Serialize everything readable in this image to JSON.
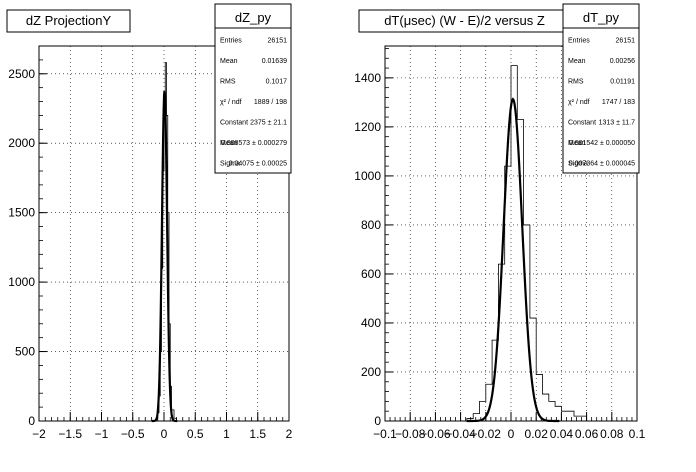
{
  "chart_data": [
    {
      "type": "histogram",
      "title": "dZ ProjectionY",
      "stats": {
        "name": "dZ_py",
        "rows": [
          {
            "label": "Entries",
            "value": "26151"
          },
          {
            "label": "Mean",
            "value": "0.01639"
          },
          {
            "label": "RMS",
            "value": "0.1017"
          },
          {
            "label": "χ² / ndf",
            "value": "1889 / 198"
          },
          {
            "label": "Constant",
            "value": "2375 ± 21.1"
          },
          {
            "label": "Mean",
            "value": "0.008573 ± 0.000279"
          },
          {
            "label": "Sigma",
            "value": "0.04075 ± 0.00025"
          }
        ]
      },
      "xlim": [
        -2,
        2
      ],
      "ylim": [
        0,
        2700
      ],
      "x_ticks": [
        -2,
        -1.5,
        -1,
        -0.5,
        0,
        0.5,
        1,
        1.5,
        2
      ],
      "x_tick_labels": [
        "−2",
        "−1.5",
        "−1",
        "−0.5",
        "0",
        "0.5",
        "1",
        "1.5",
        "2"
      ],
      "y_ticks": [
        0,
        500,
        1000,
        1500,
        2000,
        2500
      ],
      "y_tick_labels": [
        "0",
        "500",
        "1000",
        "1500",
        "2000",
        "2500"
      ],
      "grid": true,
      "histogram": {
        "x": [
          -0.16,
          -0.12,
          -0.1,
          -0.08,
          -0.06,
          -0.04,
          -0.02,
          0.0,
          0.02,
          0.04,
          0.06,
          0.08,
          0.1,
          0.12,
          0.16,
          0.2
        ],
        "y": [
          0,
          20,
          60,
          180,
          500,
          1100,
          1800,
          2300,
          2580,
          2200,
          1500,
          700,
          250,
          80,
          20,
          0
        ]
      },
      "fit": {
        "constant": 2375,
        "mean": 0.008573,
        "sigma": 0.04075
      }
    },
    {
      "type": "histogram",
      "title": "dT(μsec) (W - E)/2 versus Z",
      "stats": {
        "name": "dT_py",
        "rows": [
          {
            "label": "Entries",
            "value": "26151"
          },
          {
            "label": "Mean",
            "value": "0.00256"
          },
          {
            "label": "RMS",
            "value": "0.01191"
          },
          {
            "label": "χ² / ndf",
            "value": "1747 / 183"
          },
          {
            "label": "Constant",
            "value": "1313 ± 11.7"
          },
          {
            "label": "Mean",
            "value": "0.001542 ± 0.000050"
          },
          {
            "label": "Sigma",
            "value": "0.007364 ± 0.000045"
          }
        ]
      },
      "xlim": [
        -0.1,
        0.1
      ],
      "ylim": [
        0,
        1530
      ],
      "x_ticks": [
        -0.1,
        -0.08,
        -0.06,
        -0.04,
        -0.02,
        0,
        0.02,
        0.04,
        0.06,
        0.08,
        0.1
      ],
      "x_tick_labels": [
        "−0.1",
        "−0.08",
        "−0.06",
        "−0.04",
        "−0.02",
        "0",
        "0.02",
        "0.04",
        "0.06",
        "0.08",
        "0.1"
      ],
      "y_ticks": [
        0,
        200,
        400,
        600,
        800,
        1000,
        1200,
        1400
      ],
      "y_tick_labels": [
        "0",
        "200",
        "400",
        "600",
        "800",
        "1000",
        "1200",
        "1400"
      ],
      "grid": true,
      "histogram": {
        "x": [
          -0.04,
          -0.035,
          -0.03,
          -0.025,
          -0.02,
          -0.015,
          -0.01,
          -0.005,
          0.0,
          0.005,
          0.01,
          0.015,
          0.02,
          0.025,
          0.03,
          0.035,
          0.04,
          0.05,
          0.06
        ],
        "y": [
          0,
          10,
          30,
          80,
          150,
          330,
          640,
          1040,
          1450,
          1230,
          800,
          420,
          190,
          110,
          80,
          60,
          40,
          20,
          0
        ]
      },
      "fit": {
        "constant": 1313,
        "mean": 0.001542,
        "sigma": 0.007364
      }
    }
  ]
}
